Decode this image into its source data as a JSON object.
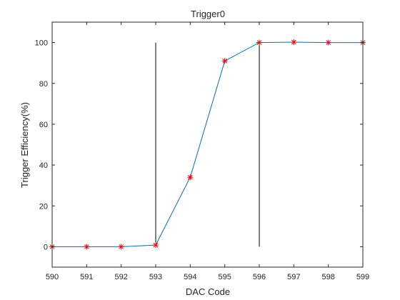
{
  "chart_data": {
    "type": "line",
    "title": "Trigger0",
    "xlabel": "DAC Code",
    "ylabel": "Trigger Efficiency(%)",
    "xlim": [
      590,
      599
    ],
    "ylim": [
      -10,
      110
    ],
    "xticks": [
      590,
      591,
      592,
      593,
      594,
      595,
      596,
      597,
      598,
      599
    ],
    "yticks": [
      0,
      20,
      40,
      60,
      80,
      100
    ],
    "grid": false,
    "series": [
      {
        "x": [
          590,
          591,
          592,
          593,
          594,
          595,
          596,
          597,
          598,
          599
        ],
        "values": [
          0,
          0,
          0,
          0.8,
          34,
          91,
          100,
          100.2,
          100,
          100
        ],
        "line_color": "#0072bd",
        "marker": "asterisk",
        "marker_color": "#ff0000"
      }
    ],
    "reference_lines": [
      {
        "x": 593,
        "y_from": 0,
        "y_to": 100,
        "color": "#000000"
      },
      {
        "x": 596,
        "y_from": 0,
        "y_to": 100,
        "color": "#000000"
      }
    ]
  }
}
